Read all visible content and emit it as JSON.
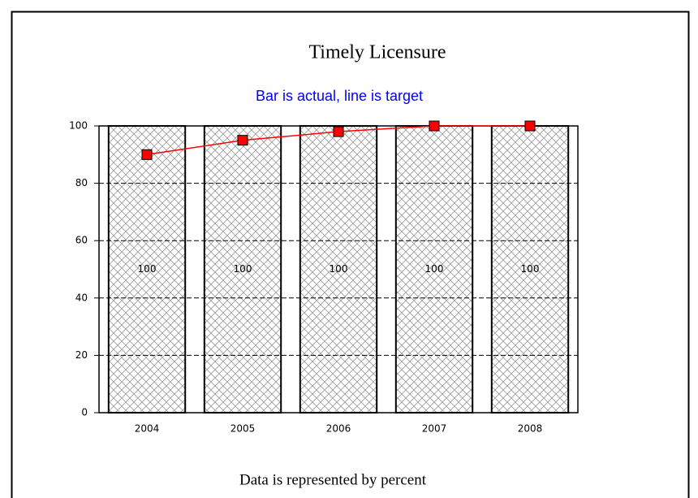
{
  "chart_data": {
    "type": "bar",
    "title": "Timely Licensure",
    "subtitle": "Bar is actual, line is target",
    "footer": "Data is represented by percent",
    "categories": [
      "2004",
      "2005",
      "2006",
      "2007",
      "2008"
    ],
    "series": [
      {
        "type": "bar",
        "color": "#999999",
        "values": [
          100,
          100,
          100,
          100,
          100
        ]
      },
      {
        "type": "line",
        "color": "#ff0000",
        "values": [
          90,
          95,
          98,
          100,
          100
        ]
      }
    ],
    "ylim": [
      0,
      100
    ],
    "yticks": [
      0,
      20,
      40,
      60,
      80,
      100
    ],
    "grid": true
  }
}
